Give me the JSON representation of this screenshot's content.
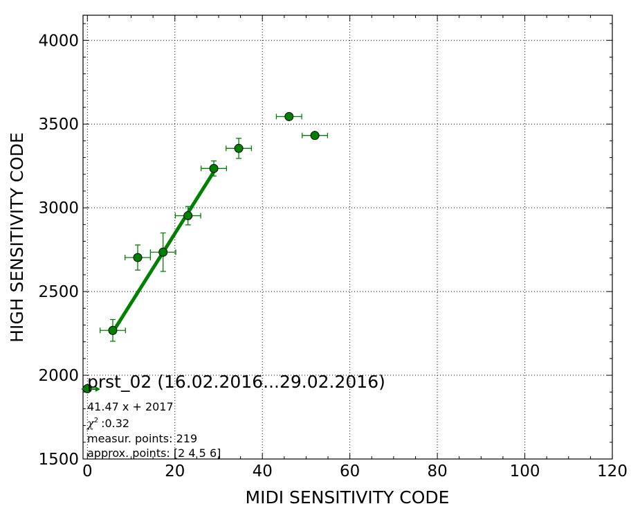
{
  "chart_data": {
    "type": "scatter",
    "title": "",
    "xlabel": "MIDI SENSITIVITY CODE",
    "ylabel": "HIGH SENSITIVITY CODE",
    "xlim": [
      -1,
      120
    ],
    "ylim": [
      1500,
      4150
    ],
    "x_ticks": [
      0,
      20,
      40,
      60,
      80,
      100,
      120
    ],
    "y_ticks": [
      1500,
      2000,
      2500,
      3000,
      3500,
      4000
    ],
    "grid": true,
    "colors": {
      "points": "#008000",
      "fit": "#008000",
      "edge": "#000000"
    },
    "points": [
      {
        "x": 0.0,
        "y": 1920,
        "xerr": 0,
        "yerr": 0
      },
      {
        "x": 5.8,
        "y": 2268,
        "xerr": 2.9,
        "yerr": 65
      },
      {
        "x": 11.5,
        "y": 2703,
        "xerr": 2.9,
        "yerr": 75
      },
      {
        "x": 17.3,
        "y": 2735,
        "xerr": 2.9,
        "yerr": 115
      },
      {
        "x": 23.0,
        "y": 2953,
        "xerr": 2.9,
        "yerr": 55
      },
      {
        "x": 28.9,
        "y": 3235,
        "xerr": 2.9,
        "yerr": 45
      },
      {
        "x": 34.6,
        "y": 3355,
        "xerr": 2.9,
        "yerr": 60
      },
      {
        "x": 46.1,
        "y": 3545,
        "xerr": 2.9,
        "yerr": 0
      },
      {
        "x": 52.0,
        "y": 3432,
        "xerr": 2.9,
        "yerr": 0
      }
    ],
    "fit": {
      "slope": 41.47,
      "intercept": 2017,
      "x_range": [
        5.8,
        28.9
      ]
    },
    "annotation": {
      "title": "prst_02 (16.02.2016...29.02.2016)",
      "equation": "41.47 x + 2017",
      "chi2_symbol": "χ",
      "chi2_value": ":0.32",
      "measur_points": "measur. points: 219",
      "approx_points": "approx. points: [2 4 5 6]"
    }
  }
}
